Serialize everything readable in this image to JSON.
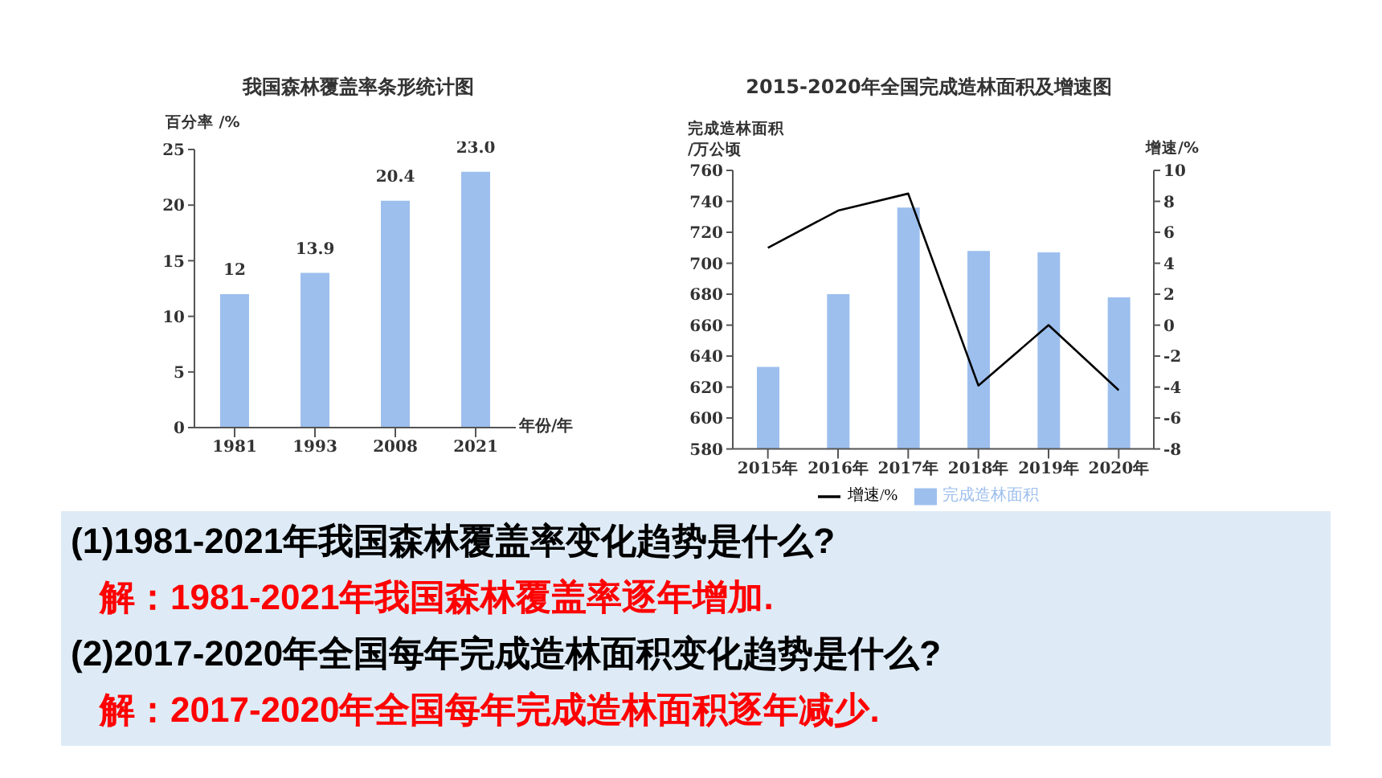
{
  "chart_data": [
    {
      "type": "bar",
      "title": "我国森林覆盖率条形统计图",
      "xlabel": "年份/年",
      "ylabel": "百分率 /%",
      "categories": [
        "1981",
        "1993",
        "2008",
        "2021"
      ],
      "values": [
        12,
        13.9,
        20.4,
        23.0
      ],
      "value_labels": [
        "12",
        "13.9",
        "20.4",
        "23.0"
      ],
      "color": "#9dbfee",
      "ylim": [
        0,
        25
      ],
      "yticks": [
        0,
        5,
        10,
        15,
        20,
        25
      ],
      "legend": false
    },
    {
      "type": "bar",
      "title": "2015-2020年全国完成造林面积及增速图",
      "ylabel": "完成造林面积\n/万公顷",
      "y2label": "增速/%",
      "categories": [
        "2015年",
        "2016年",
        "2017年",
        "2018年",
        "2019年",
        "2020年"
      ],
      "series": [
        {
          "name": "完成造林面积",
          "type": "bar",
          "color": "#9dbfee",
          "values": [
            633,
            680,
            736,
            708,
            707,
            678
          ]
        },
        {
          "name": "增速/%",
          "type": "line",
          "axis": "y2",
          "color": "#000000",
          "values": [
            5,
            7.4,
            8.5,
            -3.9,
            0,
            -4.2
          ]
        }
      ],
      "ylim": [
        580,
        760
      ],
      "yticks": [
        580,
        600,
        620,
        640,
        660,
        680,
        700,
        720,
        740,
        760
      ],
      "y2lim": [
        -8,
        10
      ],
      "y2ticks": [
        -8,
        -6,
        -4,
        -2,
        0,
        2,
        4,
        6,
        8,
        10
      ],
      "legend": "bottom",
      "marker": "none"
    },
    {
      "type": "other",
      "annotations": [
        "(1)1981-2021年我国森林覆盖率变化趋势是什么?",
        "解：1981-2021年我国森林覆盖率逐年增加.",
        "(2)2017-2020年全国每年完成造林面积变化趋势是什么?",
        "解：2017-2020年全国每年完成造林面积逐年减少."
      ]
    }
  ]
}
